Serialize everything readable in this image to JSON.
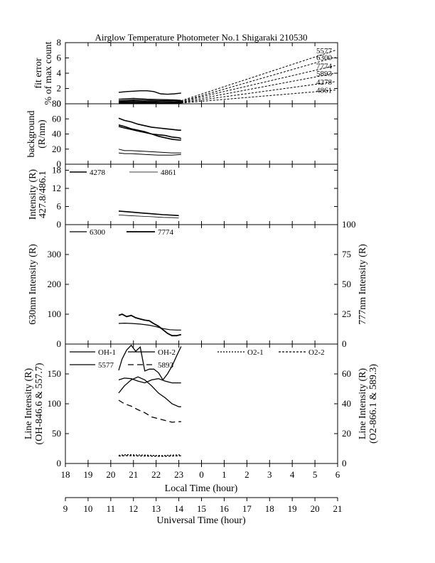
{
  "title": "Airglow Temperature Photometer No.1  Shigaraki  210530",
  "x_axis": {
    "label": "Local Time (hour)",
    "ticks": [
      "18",
      "19",
      "20",
      "21",
      "22",
      "23",
      "0",
      "1",
      "2",
      "3",
      "4",
      "5",
      "6"
    ],
    "range": [
      18,
      30
    ]
  },
  "x2_axis": {
    "label": "Universal Time (hour)",
    "ticks": [
      "9",
      "10",
      "11",
      "12",
      "13",
      "14",
      "15",
      "16",
      "17",
      "18",
      "19",
      "20",
      "21"
    ]
  },
  "chart_data": [
    {
      "type": "line",
      "panel": "fit-error",
      "ylabel": "fit error",
      "ylabel2": "% of max count",
      "ylim": [
        0,
        8
      ],
      "yticks": [
        0,
        2,
        4,
        6,
        8
      ],
      "series": [
        {
          "name": "5577",
          "x": [
            20.35,
            20.7,
            21,
            21.3,
            21.6,
            21.9,
            22.2,
            22.5,
            22.8,
            23.1
          ],
          "y": [
            1.5,
            1.6,
            1.65,
            1.7,
            1.7,
            1.6,
            1.3,
            1.25,
            1.3,
            1.4
          ],
          "dash": false
        },
        {
          "name": "6300",
          "x": [
            20.35,
            21,
            21.6,
            22.2,
            22.8,
            23.1
          ],
          "y": [
            0.6,
            0.7,
            0.6,
            0.55,
            0.5,
            0.45
          ],
          "dash": false
        },
        {
          "name": "7774",
          "x": [
            20.35,
            21,
            21.6,
            22.2,
            22.8,
            23.1
          ],
          "y": [
            0.4,
            0.5,
            0.45,
            0.4,
            0.4,
            0.35
          ],
          "dash": false
        },
        {
          "name": "5893",
          "x": [
            20.35,
            21,
            21.6,
            22.2,
            22.8,
            23.1
          ],
          "y": [
            0.3,
            0.35,
            0.3,
            0.3,
            0.25,
            0.25
          ],
          "dash": false
        },
        {
          "name": "4278",
          "x": [
            20.35,
            21,
            21.6,
            22.2,
            22.8,
            23.1
          ],
          "y": [
            0.2,
            0.2,
            0.2,
            0.15,
            0.15,
            0.15
          ],
          "dash": false
        },
        {
          "name": "4861",
          "x": [
            20.35,
            21,
            21.6,
            22.2,
            22.8,
            23.1
          ],
          "y": [
            0.1,
            0.1,
            0.1,
            0.1,
            0.1,
            0.1
          ],
          "dash": false
        },
        {
          "name": "5577",
          "x": [
            23.1,
            29.9
          ],
          "y": [
            0.4,
            7.0
          ],
          "dash": true
        },
        {
          "name": "6300",
          "x": [
            23.1,
            29.9
          ],
          "y": [
            0.3,
            6.1
          ],
          "dash": true
        },
        {
          "name": "7774",
          "x": [
            23.1,
            29.9
          ],
          "y": [
            0.3,
            5.0
          ],
          "dash": true
        },
        {
          "name": "5893",
          "x": [
            23.1,
            29.9
          ],
          "y": [
            0.2,
            4.0
          ],
          "dash": true
        },
        {
          "name": "4278",
          "x": [
            23.1,
            29.9
          ],
          "y": [
            0.15,
            2.9
          ],
          "dash": true
        },
        {
          "name": "4861",
          "x": [
            23.1,
            29.9
          ],
          "y": [
            0.1,
            1.8
          ],
          "dash": true
        }
      ],
      "right_labels": [
        "5577",
        "6300",
        "7774",
        "5893",
        "4278",
        "4861"
      ]
    },
    {
      "type": "line",
      "panel": "background",
      "ylabel": "background",
      "ylabel2": "(R/nm)",
      "ylim": [
        0,
        80
      ],
      "yticks": [
        0,
        20,
        40,
        60,
        80
      ],
      "series": [
        {
          "x": [
            20.35,
            20.6,
            20.9,
            21.2,
            21.5,
            21.8,
            22.1,
            22.4,
            22.7,
            23.0,
            23.1
          ],
          "y": [
            61,
            58,
            56,
            53,
            51,
            49,
            48,
            47,
            46,
            45,
            45
          ]
        },
        {
          "x": [
            20.35,
            20.6,
            20.9,
            21.2,
            21.5,
            21.8,
            22.1,
            22.4,
            22.7,
            23.0,
            23.1
          ],
          "y": [
            52,
            50,
            47,
            45,
            43,
            40,
            37,
            35,
            33,
            32,
            32
          ]
        },
        {
          "x": [
            20.35,
            20.6,
            20.9,
            21.2,
            21.5,
            21.8,
            22.1,
            22.4,
            22.7,
            23.0,
            23.1
          ],
          "y": [
            50,
            48,
            46,
            44,
            42,
            40,
            39,
            38,
            36,
            35,
            34
          ]
        },
        {
          "x": [
            20.35,
            20.6,
            20.9,
            21.5,
            22.1,
            22.7,
            23.1
          ],
          "y": [
            20,
            18,
            18,
            17,
            16,
            15,
            15
          ]
        },
        {
          "x": [
            20.35,
            20.6,
            20.9,
            21.5,
            22.1,
            22.7,
            23.1
          ],
          "y": [
            15,
            14,
            14,
            13,
            12,
            12,
            13
          ]
        }
      ]
    },
    {
      "type": "line",
      "panel": "intensity-427-486",
      "ylabel": "Intensity (R)",
      "ylabel2": "427.8/486.1",
      "ylim": [
        0,
        20
      ],
      "yticks": [
        0,
        6,
        12,
        18
      ],
      "series": [
        {
          "name": "4278",
          "x": [
            20.35,
            20.8,
            21.3,
            21.8,
            22.3,
            22.8,
            23.0
          ],
          "y": [
            4.5,
            4.2,
            3.9,
            3.6,
            3.3,
            3.1,
            3.0
          ],
          "width": 1.6
        },
        {
          "name": "4861",
          "x": [
            20.35,
            20.8,
            21.3,
            21.8,
            22.3,
            22.8,
            23.0
          ],
          "y": [
            3.2,
            3.0,
            2.8,
            2.6,
            2.4,
            2.3,
            2.2
          ],
          "width": 0.8
        }
      ]
    },
    {
      "type": "line",
      "panel": "630-777",
      "ylabel": "630nm Intensity (R)",
      "y2label": "777nm Intensity (R)",
      "ylim": [
        0,
        400
      ],
      "y2lim": [
        0,
        100
      ],
      "yticks": [
        0,
        100,
        200,
        300
      ],
      "y2ticks": [
        0,
        25,
        50,
        75,
        100
      ],
      "series": [
        {
          "name": "6300",
          "axis": "left",
          "x": [
            20.35,
            20.6,
            20.9,
            21.3,
            21.7,
            22.0,
            22.3,
            22.6,
            22.9,
            23.1
          ],
          "y": [
            69,
            70,
            69,
            67,
            63,
            58,
            52,
            48,
            47,
            47
          ]
        },
        {
          "name": "7774",
          "axis": "right",
          "x": [
            20.35,
            20.5,
            20.7,
            20.9,
            21.1,
            21.3,
            21.5,
            21.7,
            21.9,
            22.1,
            22.3,
            22.5,
            22.7,
            22.9,
            23.1
          ],
          "y": [
            24,
            25,
            23,
            24,
            22,
            21,
            20,
            19.5,
            17,
            15,
            12,
            9,
            7,
            7,
            8
          ]
        }
      ]
    },
    {
      "type": "line",
      "panel": "line-intensity",
      "ylabel": "Line Intensity (R)",
      "ylabel2": "(OH-846.6 & 557.7)",
      "y2label": "Line Intensity (R)",
      "y2label2": "(O2-866.1 & 589.3)",
      "ylim": [
        0,
        200
      ],
      "y2lim": [
        0,
        80
      ],
      "yticks": [
        0,
        50,
        100,
        150
      ],
      "y2ticks": [
        0,
        20,
        40,
        60
      ],
      "series": [
        {
          "name": "OH-1",
          "axis": "left",
          "x": [
            20.35,
            20.6,
            20.9,
            21.2,
            21.5,
            21.8,
            22.1,
            22.4,
            22.7,
            23.0,
            23.1
          ],
          "y": [
            118,
            130,
            140,
            145,
            140,
            130,
            118,
            110,
            100,
            95,
            95
          ],
          "dash": "none"
        },
        {
          "name": "OH-2",
          "axis": "left",
          "x": [
            20.35,
            20.6,
            20.9,
            21.2,
            21.5,
            21.8,
            22.1,
            22.4,
            22.7,
            23.0,
            23.1
          ],
          "y": [
            140,
            143,
            142,
            138,
            135,
            140,
            142,
            138,
            135,
            135,
            135
          ],
          "dash": "none"
        },
        {
          "name": "5577",
          "axis": "left",
          "x": [
            20.35,
            20.5,
            20.7,
            20.9,
            21.1,
            21.3,
            21.5,
            21.7,
            21.9,
            22.1,
            22.3,
            22.5,
            22.7,
            22.9,
            23.1
          ],
          "y": [
            156,
            175,
            190,
            198,
            188,
            195,
            155,
            158,
            158,
            152,
            140,
            150,
            163,
            180,
            196
          ],
          "dash": "none"
        },
        {
          "name": "5893",
          "axis": "left",
          "x": [
            20.35,
            20.6,
            20.9,
            21.2,
            21.5,
            21.8,
            22.1,
            22.4,
            22.7,
            23.0,
            23.1
          ],
          "y": [
            106,
            100,
            96,
            90,
            85,
            78,
            75,
            72,
            69,
            70,
            70
          ],
          "dash": "8,5"
        },
        {
          "name": "O2-1",
          "axis": "right",
          "x": [
            20.35,
            20.7,
            21.1,
            21.5,
            21.9,
            22.3,
            22.7,
            23.1
          ],
          "y": [
            5.5,
            5.9,
            5.7,
            5.6,
            5.4,
            5.3,
            5.6,
            5.8
          ],
          "dash": "2,2"
        },
        {
          "name": "O2-2",
          "axis": "right",
          "x": [
            20.35,
            20.7,
            21.1,
            21.5,
            21.9,
            22.3,
            22.7,
            23.1
          ],
          "y": [
            5.0,
            5.3,
            5.1,
            5.0,
            4.9,
            4.8,
            5.0,
            5.2
          ],
          "dash": "3,2"
        }
      ]
    }
  ]
}
